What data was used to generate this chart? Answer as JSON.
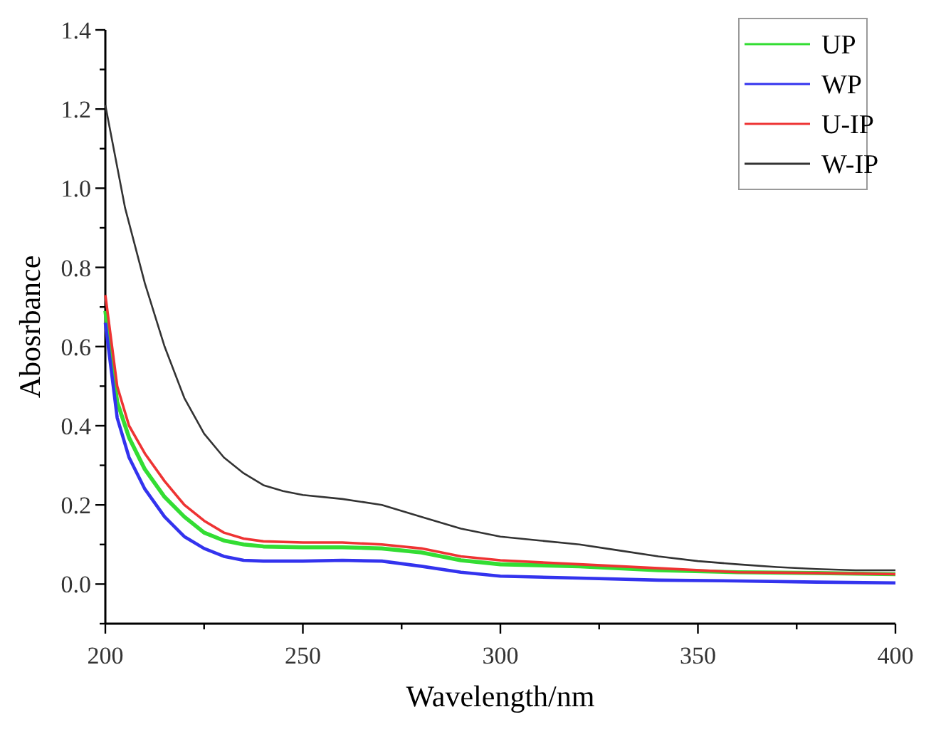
{
  "chart_data": {
    "type": "line",
    "xlabel": "Wavelength/nm",
    "ylabel": "Abosrbance",
    "xlim": [
      200,
      400
    ],
    "ylim": [
      -0.1,
      1.4
    ],
    "xticks": [
      200,
      {
        "value": 225,
        "label": null
      },
      250,
      {
        "value": 275,
        "label": null
      },
      300,
      {
        "value": 325,
        "label": null
      },
      350,
      {
        "value": 375,
        "label": null
      },
      400
    ],
    "yticks": [
      {
        "value": -0.1,
        "label": null
      },
      {
        "value": 0,
        "label": "0.0"
      },
      {
        "value": 0.1,
        "label": null
      },
      {
        "value": 0.2,
        "label": "0.2"
      },
      {
        "value": 0.3,
        "label": null
      },
      {
        "value": 0.4,
        "label": "0.4"
      },
      {
        "value": 0.5,
        "label": null
      },
      {
        "value": 0.6,
        "label": "0.6"
      },
      {
        "value": 0.7,
        "label": null
      },
      {
        "value": 0.8,
        "label": "0.8"
      },
      {
        "value": 0.9,
        "label": null
      },
      {
        "value": 1.0,
        "label": "1.0"
      },
      {
        "value": 1.1,
        "label": null
      },
      {
        "value": 1.2,
        "label": "1.2"
      },
      {
        "value": 1.3,
        "label": null
      },
      {
        "value": 1.4,
        "label": "1.4"
      }
    ],
    "legend": "top right",
    "grid": false,
    "marker": "none",
    "line_style": "solid",
    "series": [
      {
        "name": "UP",
        "color": "#33dd33",
        "x": [
          200,
          203,
          206,
          210,
          215,
          220,
          225,
          230,
          235,
          240,
          250,
          260,
          270,
          280,
          290,
          300,
          320,
          340,
          360,
          380,
          400
        ],
        "values": [
          0.69,
          0.46,
          0.37,
          0.29,
          0.22,
          0.17,
          0.13,
          0.11,
          0.1,
          0.095,
          0.093,
          0.093,
          0.09,
          0.08,
          0.06,
          0.05,
          0.045,
          0.035,
          0.03,
          0.028,
          0.025
        ]
      },
      {
        "name": "WP",
        "color": "#3333ee",
        "x": [
          200,
          203,
          206,
          210,
          215,
          220,
          225,
          230,
          235,
          240,
          250,
          260,
          270,
          280,
          290,
          300,
          320,
          340,
          360,
          380,
          400
        ],
        "values": [
          0.66,
          0.42,
          0.32,
          0.24,
          0.17,
          0.12,
          0.09,
          0.07,
          0.06,
          0.058,
          0.058,
          0.06,
          0.058,
          0.045,
          0.03,
          0.02,
          0.015,
          0.01,
          0.008,
          0.005,
          0.003
        ]
      },
      {
        "name": "U-IP",
        "color": "#ee3333",
        "x": [
          200,
          203,
          206,
          210,
          215,
          220,
          225,
          230,
          235,
          240,
          250,
          260,
          270,
          280,
          290,
          300,
          320,
          340,
          360,
          380,
          400
        ],
        "values": [
          0.73,
          0.5,
          0.4,
          0.33,
          0.26,
          0.2,
          0.16,
          0.13,
          0.115,
          0.108,
          0.105,
          0.105,
          0.1,
          0.09,
          0.07,
          0.06,
          0.05,
          0.04,
          0.03,
          0.028,
          0.025
        ]
      },
      {
        "name": "W-IP",
        "color": "#333333",
        "x": [
          200,
          205,
          210,
          215,
          220,
          225,
          230,
          235,
          240,
          245,
          250,
          260,
          270,
          280,
          290,
          300,
          310,
          320,
          330,
          340,
          350,
          360,
          370,
          380,
          390,
          400
        ],
        "values": [
          1.21,
          0.95,
          0.76,
          0.6,
          0.47,
          0.38,
          0.32,
          0.28,
          0.25,
          0.235,
          0.225,
          0.215,
          0.2,
          0.17,
          0.14,
          0.12,
          0.11,
          0.1,
          0.085,
          0.07,
          0.058,
          0.05,
          0.043,
          0.038,
          0.035,
          0.035
        ]
      }
    ]
  }
}
